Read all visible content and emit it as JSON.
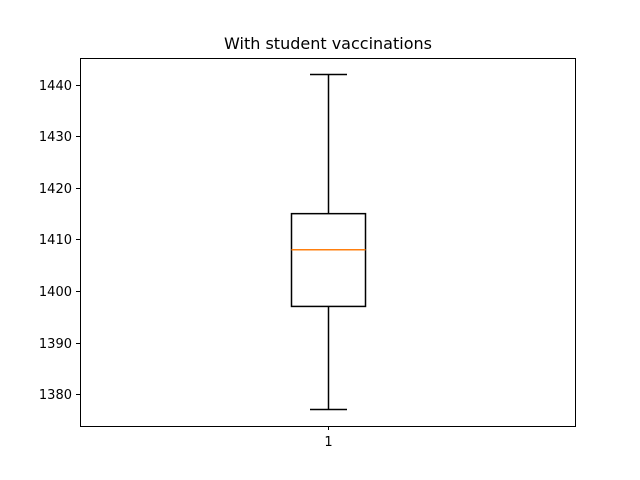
{
  "chart_data": {
    "type": "box",
    "title": "With student vaccinations",
    "xlabel": "",
    "ylabel": "",
    "categories": [
      "1"
    ],
    "ylim": [
      1373.8,
      1445.2
    ],
    "yticks": [
      1380,
      1390,
      1400,
      1410,
      1420,
      1430,
      1440
    ],
    "grid": false,
    "boxes": [
      {
        "category": "1",
        "whisker_low": 1377,
        "q1": 1397,
        "median": 1408,
        "q3": 1415,
        "whisker_high": 1442
      }
    ],
    "colors": {
      "box": "#000000",
      "median": "#ff7f0e",
      "axes": "#000000"
    }
  }
}
